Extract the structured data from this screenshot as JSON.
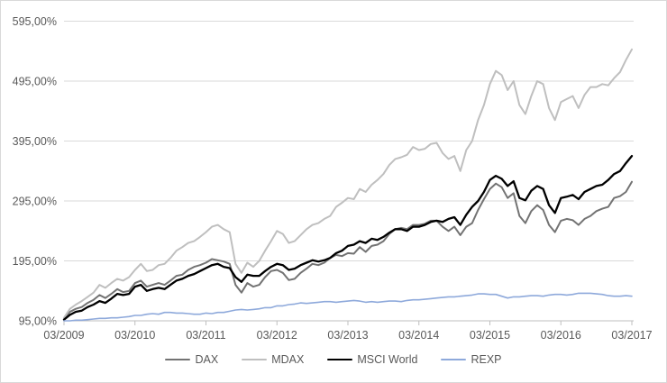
{
  "chart_data": {
    "type": "line",
    "title": "",
    "xlabel": "",
    "ylabel": "",
    "x_unit": "months since 03/2009",
    "x_tick_labels": [
      "03/2009",
      "03/2010",
      "03/2011",
      "03/2012",
      "03/2013",
      "03/2014",
      "03/2015",
      "03/2016",
      "03/2017"
    ],
    "x_tick_positions_months": [
      0,
      12,
      24,
      36,
      48,
      60,
      72,
      84,
      96
    ],
    "y_ticks": [
      {
        "value": 95,
        "label": "95,00%"
      },
      {
        "value": 195,
        "label": "195,00%"
      },
      {
        "value": 295,
        "label": "295,00%"
      },
      {
        "value": 395,
        "label": "395,00%"
      },
      {
        "value": 495,
        "label": "495,00%"
      },
      {
        "value": 595,
        "label": "595,00%"
      }
    ],
    "ylim": [
      95,
      595
    ],
    "grid": true,
    "grid_color": "#d9d9d9",
    "axis_color": "#bfbfbf",
    "label_color": "#595959",
    "border_color": "#d9d9d9",
    "background_color": "#ffffff",
    "legend_position": "bottom",
    "series": [
      {
        "name": "DAX",
        "color": "#737373",
        "stroke_width": 2,
        "values": [
          97,
          110,
          115,
          118,
          125,
          130,
          138,
          133,
          140,
          148,
          143,
          145,
          158,
          162,
          152,
          155,
          158,
          155,
          162,
          170,
          172,
          180,
          185,
          188,
          192,
          198,
          196,
          194,
          190,
          155,
          142,
          158,
          152,
          155,
          168,
          178,
          180,
          175,
          163,
          165,
          175,
          182,
          190,
          188,
          192,
          200,
          205,
          203,
          208,
          207,
          218,
          210,
          220,
          222,
          228,
          240,
          248,
          250,
          248,
          255,
          255,
          257,
          262,
          262,
          252,
          245,
          252,
          238,
          252,
          258,
          280,
          298,
          315,
          324,
          318,
          300,
          308,
          270,
          258,
          278,
          288,
          280,
          255,
          243,
          262,
          265,
          263,
          255,
          265,
          270,
          278,
          282,
          285,
          300,
          303,
          310,
          327
        ]
      },
      {
        "name": "MDAX",
        "color": "#bfbfbf",
        "stroke_width": 2,
        "values": [
          100,
          115,
          122,
          128,
          135,
          142,
          155,
          150,
          158,
          165,
          162,
          168,
          180,
          190,
          178,
          180,
          188,
          190,
          200,
          212,
          218,
          225,
          228,
          235,
          243,
          252,
          255,
          248,
          243,
          190,
          175,
          192,
          185,
          195,
          212,
          228,
          245,
          240,
          225,
          228,
          238,
          248,
          255,
          258,
          265,
          270,
          285,
          292,
          300,
          298,
          315,
          310,
          322,
          330,
          340,
          355,
          365,
          368,
          372,
          385,
          380,
          382,
          390,
          392,
          375,
          365,
          370,
          345,
          380,
          395,
          430,
          455,
          490,
          512,
          505,
          480,
          495,
          455,
          440,
          470,
          495,
          490,
          450,
          430,
          460,
          465,
          470,
          450,
          472,
          485,
          485,
          490,
          488,
          500,
          510,
          530,
          548
        ]
      },
      {
        "name": "MSCI World",
        "color": "#000000",
        "stroke_width": 2.3,
        "values": [
          97,
          105,
          110,
          112,
          118,
          122,
          128,
          125,
          132,
          140,
          138,
          140,
          152,
          155,
          145,
          148,
          150,
          148,
          155,
          162,
          165,
          170,
          173,
          178,
          183,
          188,
          190,
          185,
          183,
          168,
          160,
          172,
          170,
          170,
          178,
          185,
          190,
          188,
          180,
          182,
          188,
          192,
          196,
          194,
          196,
          200,
          208,
          212,
          220,
          222,
          228,
          225,
          232,
          230,
          235,
          242,
          248,
          248,
          245,
          252,
          252,
          255,
          260,
          262,
          260,
          265,
          268,
          255,
          272,
          285,
          295,
          310,
          330,
          337,
          332,
          320,
          328,
          300,
          296,
          312,
          320,
          315,
          288,
          275,
          300,
          302,
          305,
          298,
          310,
          315,
          320,
          322,
          330,
          340,
          345,
          358,
          370
        ]
      },
      {
        "name": "REXP",
        "color": "#8ea9db",
        "stroke_width": 1.6,
        "values": [
          95,
          95,
          96,
          96,
          97,
          98,
          99,
          99,
          100,
          100,
          101,
          102,
          104,
          104,
          106,
          107,
          106,
          109,
          109,
          108,
          108,
          107,
          106,
          106,
          108,
          107,
          109,
          109,
          111,
          113,
          114,
          113,
          114,
          115,
          117,
          117,
          120,
          120,
          122,
          123,
          125,
          124,
          125,
          126,
          127,
          127,
          126,
          127,
          128,
          129,
          128,
          126,
          127,
          126,
          127,
          128,
          128,
          127,
          129,
          130,
          130,
          131,
          132,
          133,
          134,
          135,
          135,
          136,
          137,
          138,
          140,
          140,
          139,
          139,
          136,
          133,
          135,
          135,
          136,
          137,
          137,
          136,
          138,
          139,
          139,
          138,
          139,
          141,
          141,
          141,
          140,
          139,
          137,
          136,
          136,
          137,
          136
        ]
      }
    ]
  }
}
